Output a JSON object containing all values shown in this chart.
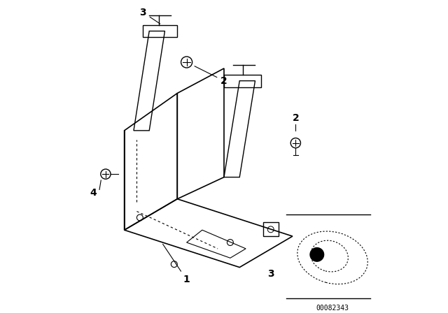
{
  "bg_color": "#ffffff",
  "line_color": "#000000",
  "label_color": "#000000",
  "part_code": "00082343",
  "figsize": [
    6.4,
    4.48
  ],
  "dpi": 100,
  "label_fontsize": 10,
  "part_code_fontsize": 7
}
